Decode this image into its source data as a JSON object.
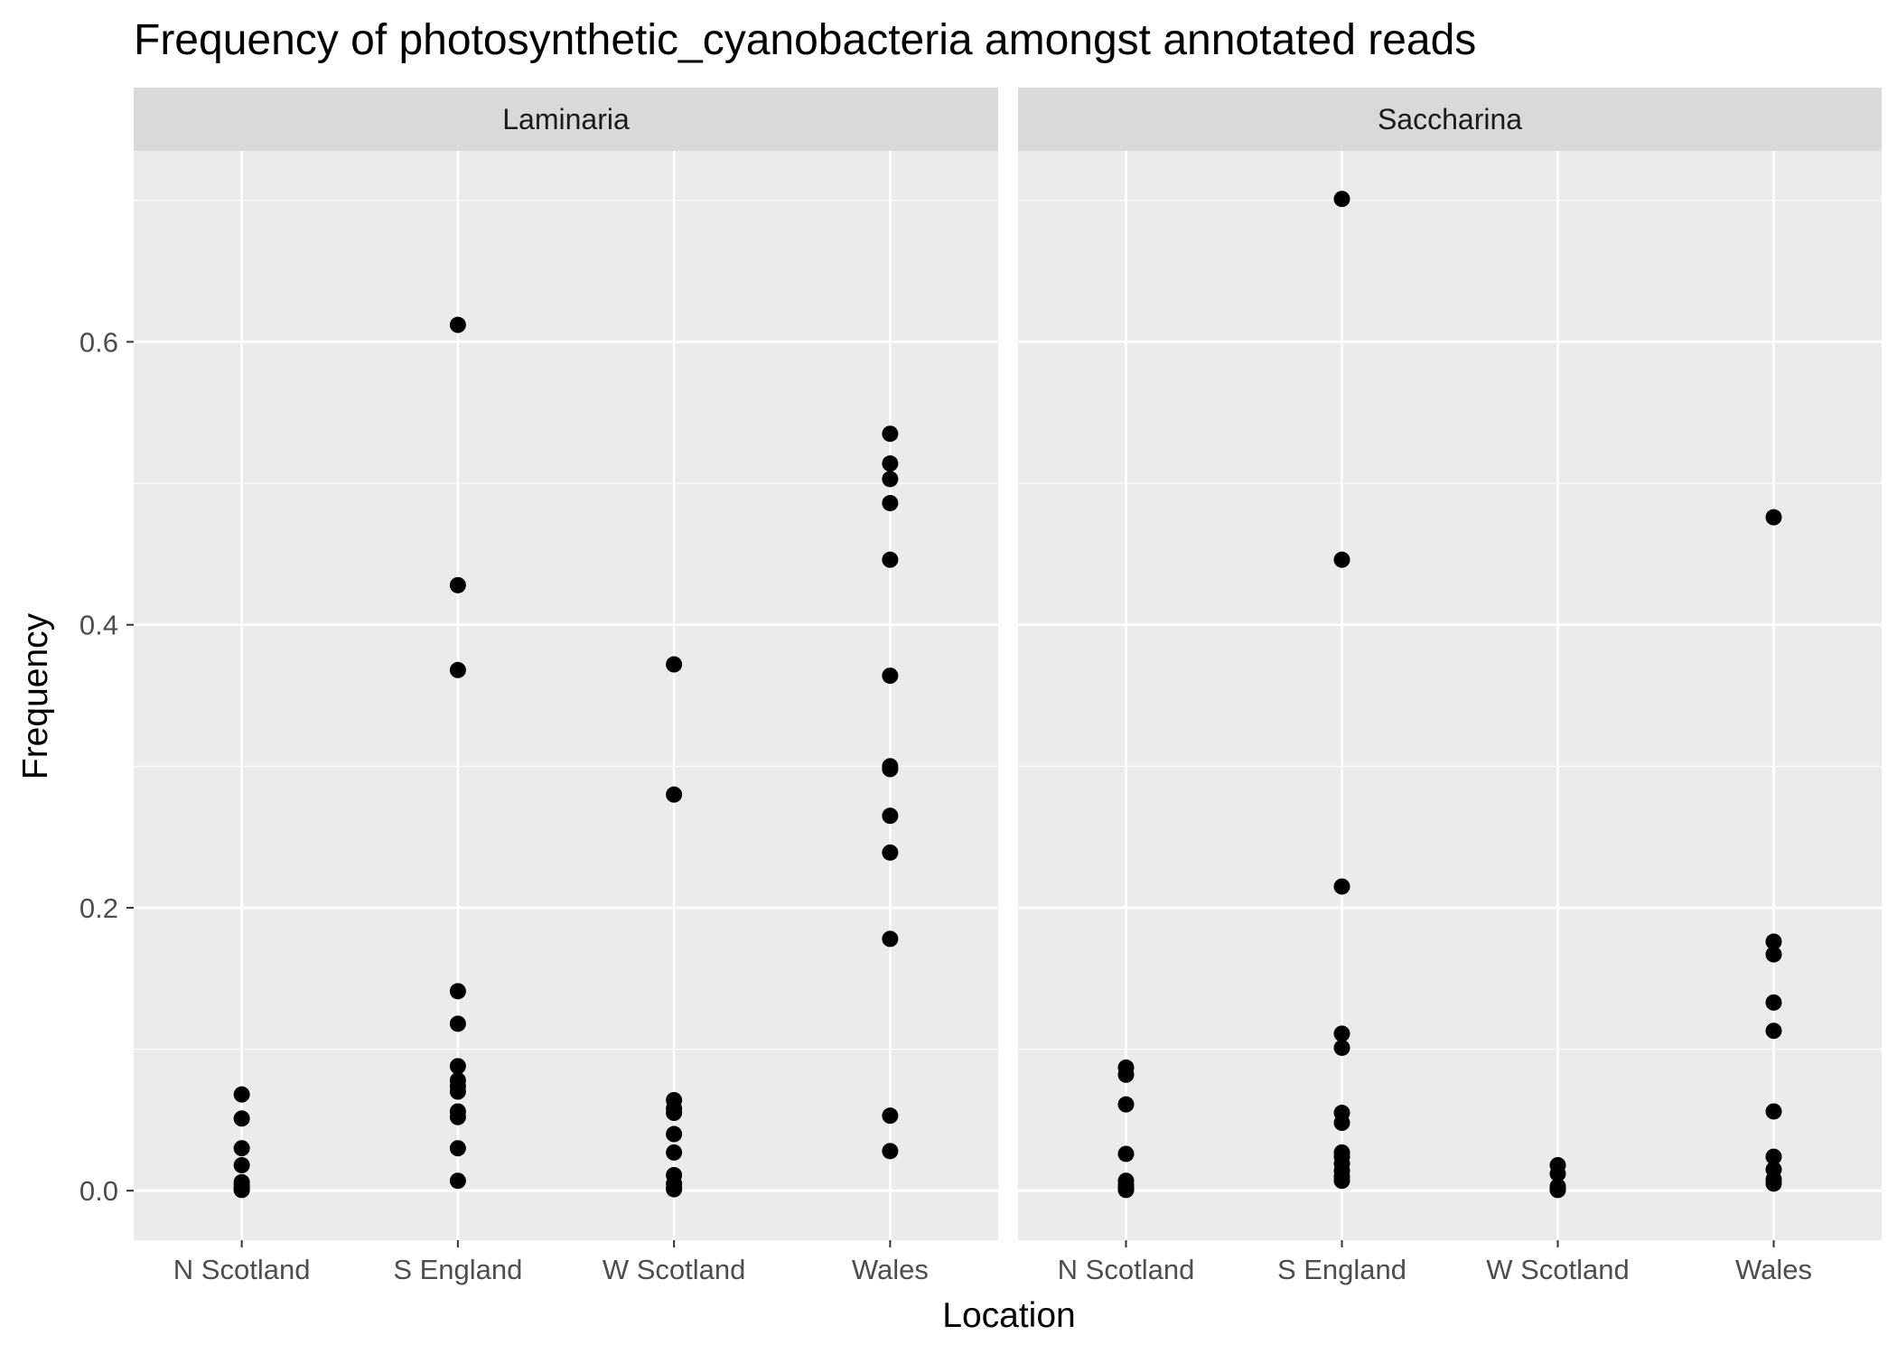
{
  "chart_data": {
    "type": "scatter",
    "title": "Frequency of photosynthetic_cyanobacteria amongst annotated reads",
    "xlabel": "Location",
    "ylabel": "Frequency",
    "categories": [
      "N Scotland",
      "S England",
      "W Scotland",
      "Wales"
    ],
    "ylim": [
      -0.035,
      0.735
    ],
    "yticks": [
      0.0,
      0.2,
      0.4,
      0.6
    ],
    "ytick_labels": [
      "0.0",
      "0.2",
      "0.4",
      "0.6"
    ],
    "grid": true,
    "legend": "none",
    "point_color": "#000000",
    "panel_background": "#ebebeb",
    "strip_background": "#d9d9d9",
    "facets": [
      {
        "label": "Laminaria",
        "points": {
          "N Scotland": [
            0.068,
            0.051,
            0.03,
            0.018,
            0.006,
            0.004,
            0.002,
            0.001,
            0.0005
          ],
          "S England": [
            0.612,
            0.428,
            0.368,
            0.141,
            0.118,
            0.088,
            0.078,
            0.074,
            0.07,
            0.056,
            0.052,
            0.03,
            0.007
          ],
          "W Scotland": [
            0.372,
            0.28,
            0.064,
            0.058,
            0.055,
            0.04,
            0.027,
            0.011,
            0.005,
            0.002,
            0.001
          ],
          "Wales": [
            0.535,
            0.514,
            0.503,
            0.486,
            0.446,
            0.364,
            0.3,
            0.298,
            0.265,
            0.239,
            0.178,
            0.053,
            0.028
          ]
        }
      },
      {
        "label": "Saccharina",
        "points": {
          "N Scotland": [
            0.087,
            0.082,
            0.061,
            0.026,
            0.007,
            0.004,
            0.002,
            0.001,
            0.0005
          ],
          "S England": [
            0.701,
            0.446,
            0.215,
            0.111,
            0.101,
            0.055,
            0.048,
            0.027,
            0.024,
            0.019,
            0.014,
            0.01,
            0.007
          ],
          "W Scotland": [
            0.018,
            0.012,
            0.003,
            0.001,
            0.0005
          ],
          "Wales": [
            0.476,
            0.176,
            0.167,
            0.133,
            0.113,
            0.056,
            0.024,
            0.015,
            0.008,
            0.005
          ]
        }
      }
    ]
  }
}
